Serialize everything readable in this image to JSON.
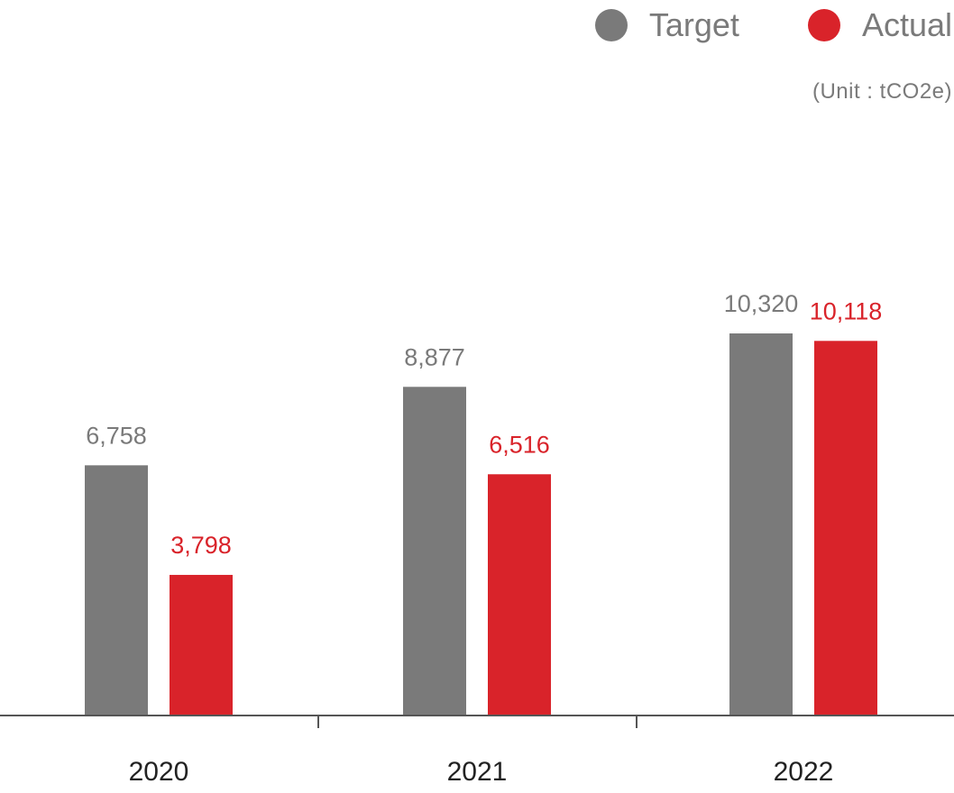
{
  "legend": {
    "target_label": "Target",
    "actual_label": "Actual"
  },
  "unit_label": "(Unit : tCO2e)",
  "colors": {
    "target": "#7a7a7a",
    "actual": "#d9232a",
    "axis": "#555555"
  },
  "chart_data": {
    "type": "bar",
    "categories": [
      "2020",
      "2021",
      "2022"
    ],
    "series": [
      {
        "name": "Target",
        "values": [
          6758,
          8877,
          10320
        ],
        "labels": [
          "6,758",
          "8,877",
          "10,320"
        ]
      },
      {
        "name": "Actual",
        "values": [
          3798,
          6516,
          10118
        ],
        "labels": [
          "3,798",
          "6,516",
          "10,118"
        ]
      }
    ],
    "ylim": [
      0,
      10320
    ],
    "legend_position": "top-right",
    "grid": false
  }
}
